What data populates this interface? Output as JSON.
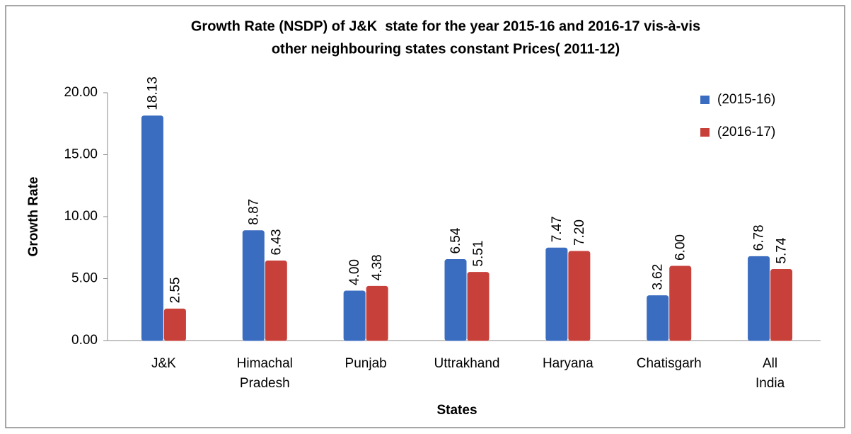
{
  "chart_data": {
    "type": "bar",
    "title": [
      "Growth Rate (NSDP) of J&K  state for the year 2015-16 and 2016-17 vis-à-vis",
      "other neighbouring states constant Prices( 2011-12)"
    ],
    "x_label": "States",
    "y_label": "Growth Rate",
    "categories": [
      "J&K",
      "Himachal Pradesh",
      "Punjab",
      "Uttrakhand",
      "Haryana",
      "Chatisgarh",
      "All India"
    ],
    "series": [
      {
        "name": "(2015-16)",
        "color": "#3a6cc0",
        "values": [
          18.13,
          8.87,
          4.0,
          6.54,
          7.47,
          3.62,
          6.78
        ],
        "value_labels": [
          "18.13",
          "8.87",
          "4.00",
          "6.54",
          "7.47",
          "3.62",
          "6.78"
        ]
      },
      {
        "name": "(2016-17)",
        "color": "#c8403a",
        "values": [
          2.55,
          6.43,
          4.38,
          5.51,
          7.2,
          6.0,
          5.74
        ],
        "value_labels": [
          "2.55",
          "6.43",
          "4.38",
          "5.51",
          "7.20",
          "6.00",
          "5.74"
        ]
      }
    ],
    "ylim": [
      0,
      20
    ],
    "yticks": [
      {
        "value": 0,
        "label": "0.00"
      },
      {
        "value": 5,
        "label": "5.00"
      },
      {
        "value": 10,
        "label": "10.00"
      },
      {
        "value": 15,
        "label": "15.00"
      },
      {
        "value": 20,
        "label": "20.00"
      }
    ],
    "grid": false,
    "legend": "top-right"
  }
}
